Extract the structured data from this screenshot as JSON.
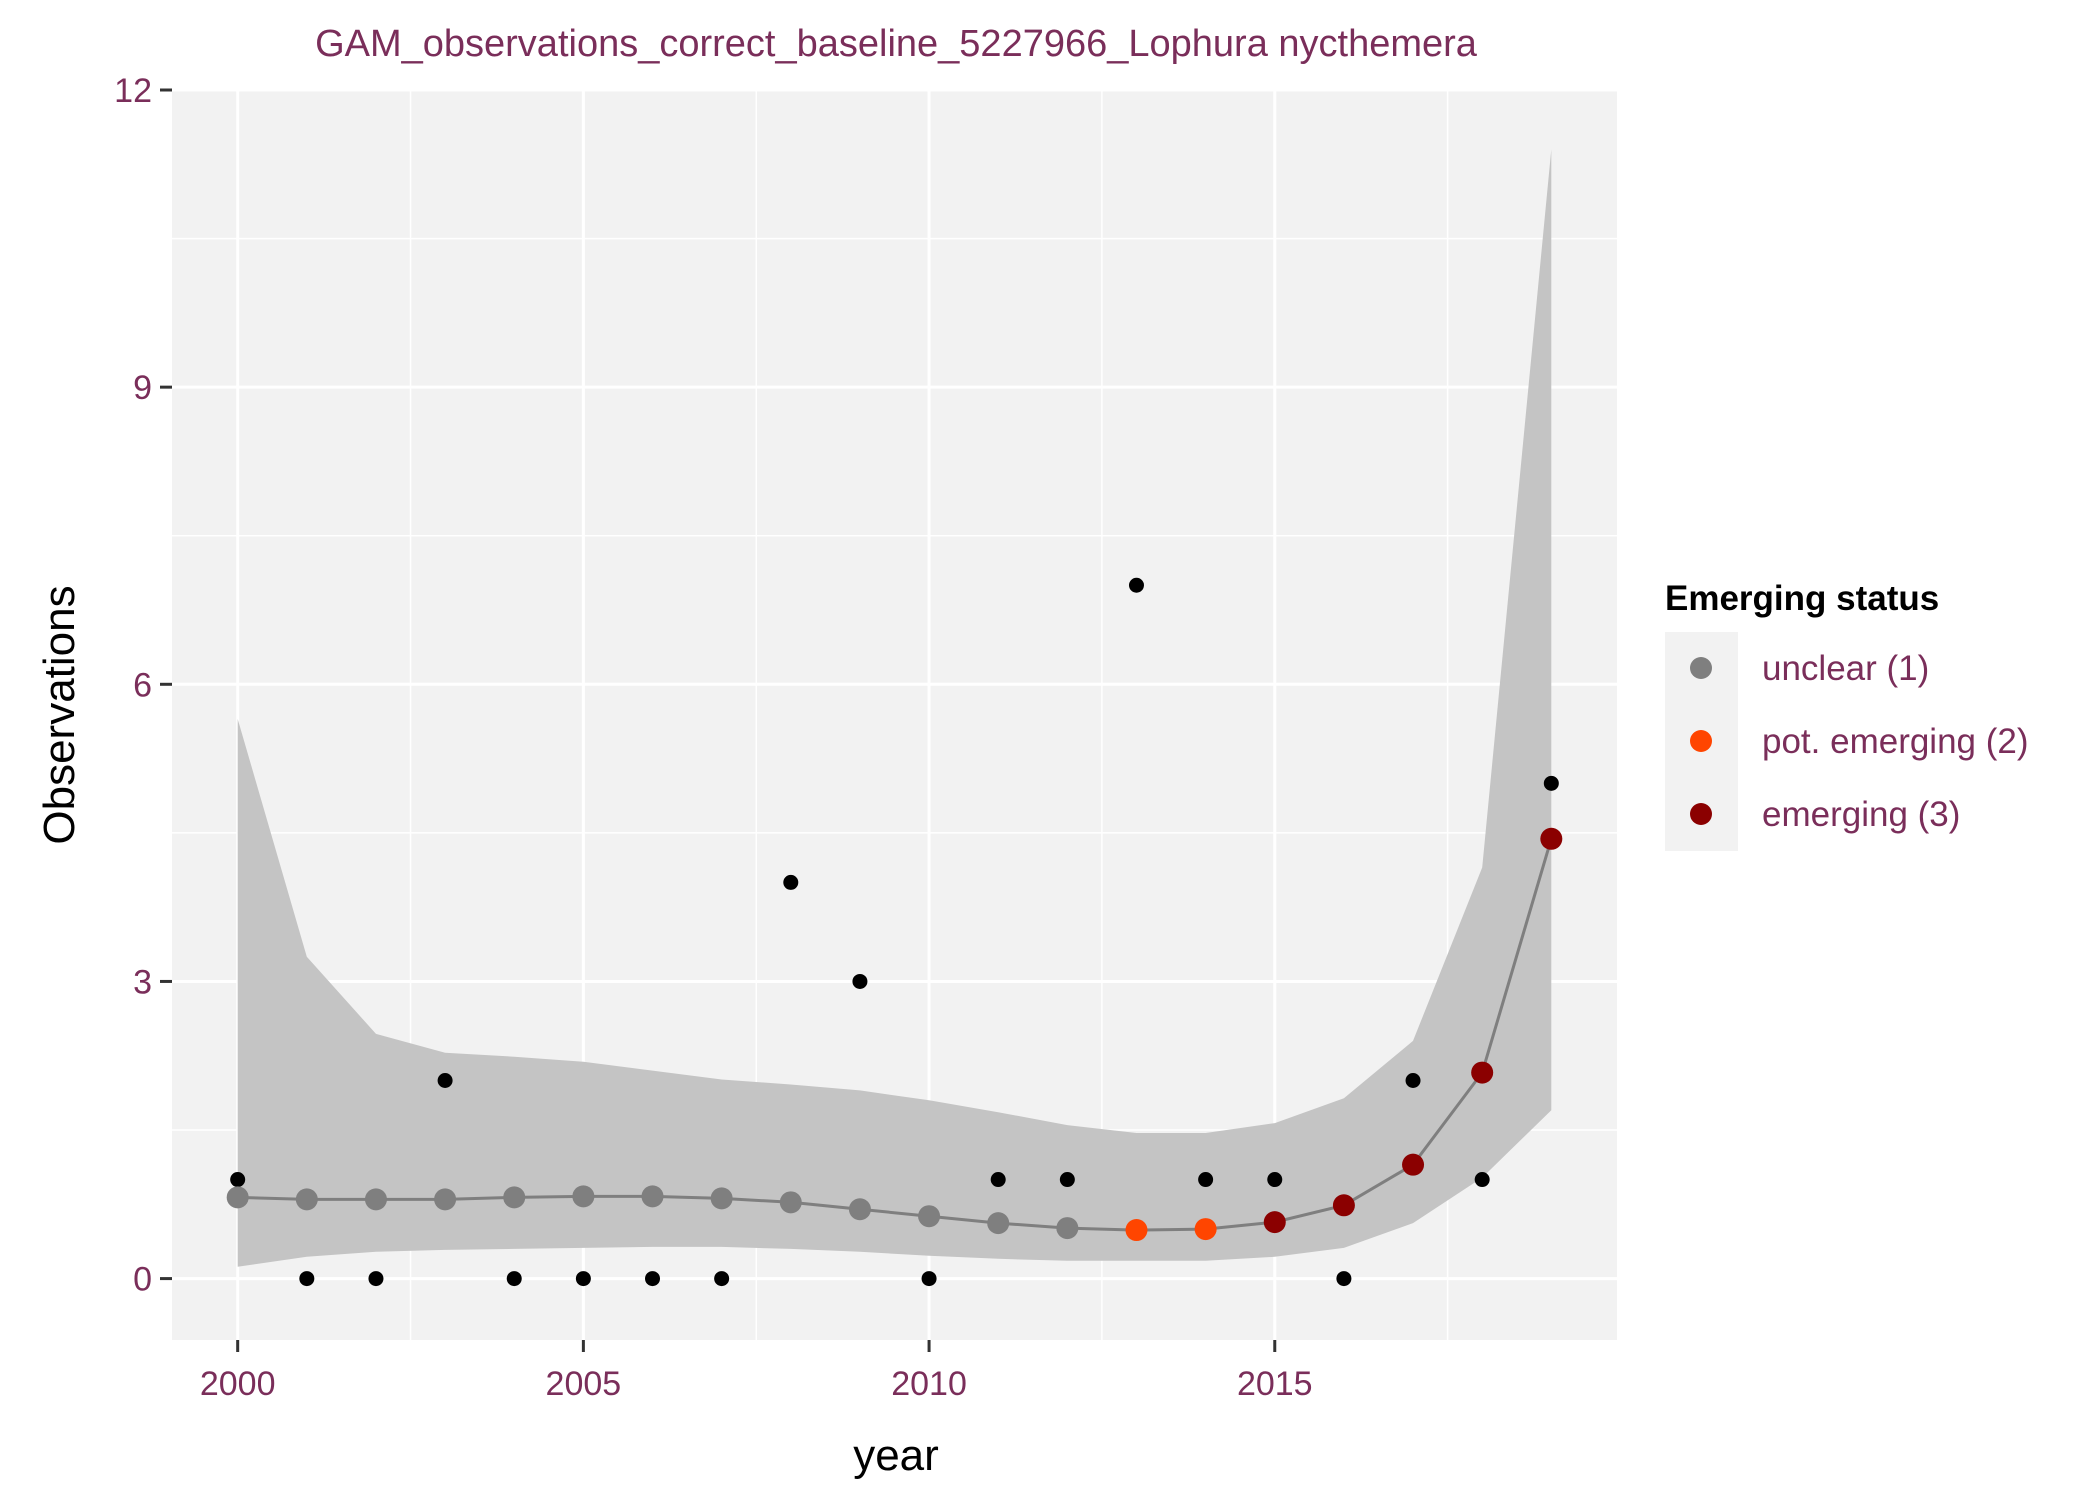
{
  "chart_data": {
    "type": "scatter",
    "title": "GAM_observations_correct_baseline_5227966_Lophura nycthemera",
    "xlabel": "year",
    "ylabel": "Observations",
    "xlim": [
      1999.05,
      2019.95
    ],
    "ylim": [
      -0.62,
      12.0
    ],
    "x_ticks": [
      2000,
      2005,
      2010,
      2015
    ],
    "y_ticks": [
      0,
      3,
      6,
      9,
      12
    ],
    "x_tick_labels": [
      "2000",
      "2005",
      "2010",
      "2015"
    ],
    "y_tick_labels": [
      "0",
      "3",
      "6",
      "9",
      "12"
    ],
    "grid": true,
    "legend_position": "right",
    "observations": {
      "x": [
        2000,
        2001,
        2002,
        2003,
        2004,
        2005,
        2006,
        2007,
        2008,
        2009,
        2010,
        2011,
        2012,
        2013,
        2014,
        2015,
        2016,
        2017,
        2018,
        2019
      ],
      "y": [
        1,
        0,
        0,
        2,
        0,
        0,
        0,
        0,
        4,
        3,
        0,
        1,
        1,
        7,
        1,
        1,
        0,
        2,
        1,
        5
      ],
      "color": "#000000"
    },
    "gam_fit": {
      "x": [
        2000,
        2001,
        2002,
        2003,
        2004,
        2005,
        2006,
        2007,
        2008,
        2009,
        2010,
        2011,
        2012,
        2013,
        2014,
        2015,
        2016,
        2017,
        2018,
        2019
      ],
      "y": [
        0.82,
        0.8,
        0.8,
        0.8,
        0.82,
        0.83,
        0.83,
        0.81,
        0.77,
        0.7,
        0.63,
        0.56,
        0.51,
        0.49,
        0.5,
        0.57,
        0.74,
        1.15,
        2.08,
        4.44
      ],
      "lower": [
        0.12,
        0.22,
        0.27,
        0.29,
        0.3,
        0.31,
        0.32,
        0.32,
        0.3,
        0.27,
        0.23,
        0.2,
        0.18,
        0.18,
        0.18,
        0.22,
        0.31,
        0.56,
        1.02,
        1.7
      ],
      "upper": [
        5.65,
        3.25,
        2.47,
        2.28,
        2.24,
        2.19,
        2.1,
        2.01,
        1.96,
        1.9,
        1.8,
        1.68,
        1.55,
        1.47,
        1.47,
        1.57,
        1.82,
        2.4,
        4.15,
        11.4
      ],
      "status": [
        1,
        1,
        1,
        1,
        1,
        1,
        1,
        1,
        1,
        1,
        1,
        1,
        1,
        2,
        2,
        3,
        3,
        3,
        3,
        3
      ],
      "line_color": "#7f7f7f",
      "band_color": "#c4c4c4"
    },
    "legend": {
      "title": "Emerging status",
      "items": [
        {
          "label": "unclear (1)",
          "status": 1,
          "color": "#7f7f7f"
        },
        {
          "label": "pot. emerging (2)",
          "status": 2,
          "color": "#ff4500"
        },
        {
          "label": "emerging (3)",
          "status": 3,
          "color": "#8b0000"
        }
      ]
    },
    "panel_color": "#f2f2f2"
  }
}
